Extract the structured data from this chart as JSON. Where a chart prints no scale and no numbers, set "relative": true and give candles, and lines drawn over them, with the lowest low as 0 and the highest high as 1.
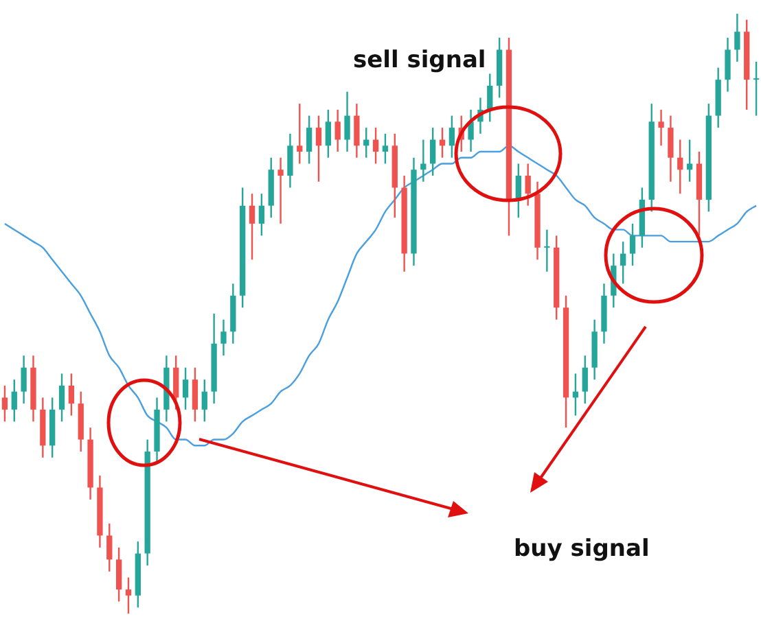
{
  "chart_data": {
    "type": "candlestick",
    "relative": true,
    "categories": [
      null,
      null,
      null,
      null,
      null,
      null,
      null,
      null,
      null,
      null,
      null,
      null,
      null,
      null,
      null,
      null,
      null,
      null,
      null,
      null,
      null,
      null,
      null,
      null,
      null,
      null,
      null,
      null,
      null,
      null,
      null,
      null,
      null,
      null,
      null,
      null,
      null,
      null,
      null,
      null,
      null,
      null,
      null,
      null,
      null,
      null,
      null,
      null,
      null,
      null,
      null,
      null,
      null,
      null,
      null,
      null,
      null,
      null,
      null,
      null,
      null,
      null,
      null,
      null,
      null,
      null,
      null,
      null,
      null,
      null,
      null,
      null,
      null,
      null,
      null,
      null,
      null,
      null,
      null,
      null
    ],
    "ohlc": [
      [
        0.36,
        0.38,
        0.32,
        0.34
      ],
      [
        0.34,
        0.39,
        0.32,
        0.37
      ],
      [
        0.37,
        0.43,
        0.35,
        0.41
      ],
      [
        0.41,
        0.43,
        0.32,
        0.34
      ],
      [
        0.34,
        0.36,
        0.26,
        0.28
      ],
      [
        0.28,
        0.36,
        0.26,
        0.34
      ],
      [
        0.34,
        0.4,
        0.32,
        0.38
      ],
      [
        0.38,
        0.4,
        0.33,
        0.35
      ],
      [
        0.35,
        0.37,
        0.27,
        0.29
      ],
      [
        0.29,
        0.31,
        0.19,
        0.21
      ],
      [
        0.21,
        0.23,
        0.11,
        0.13
      ],
      [
        0.13,
        0.15,
        0.07,
        0.09
      ],
      [
        0.09,
        0.11,
        0.02,
        0.04
      ],
      [
        0.04,
        0.06,
        0,
        0.03
      ],
      [
        0.03,
        0.12,
        0.01,
        0.1
      ],
      [
        0.1,
        0.29,
        0.08,
        0.27
      ],
      [
        0.27,
        0.36,
        0.25,
        0.34
      ],
      [
        0.34,
        0.43,
        0.32,
        0.41
      ],
      [
        0.41,
        0.43,
        0.34,
        0.36
      ],
      [
        0.36,
        0.41,
        0.34,
        0.39
      ],
      [
        0.39,
        0.41,
        0.32,
        0.34
      ],
      [
        0.34,
        0.39,
        0.32,
        0.37
      ],
      [
        0.37,
        0.5,
        0.35,
        0.45
      ],
      [
        0.45,
        0.49,
        0.43,
        0.47
      ],
      [
        0.47,
        0.55,
        0.45,
        0.53
      ],
      [
        0.53,
        0.71,
        0.51,
        0.68
      ],
      [
        0.68,
        0.7,
        0.59,
        0.65
      ],
      [
        0.65,
        0.7,
        0.63,
        0.68
      ],
      [
        0.68,
        0.76,
        0.66,
        0.74
      ],
      [
        0.74,
        0.76,
        0.65,
        0.73
      ],
      [
        0.73,
        0.8,
        0.71,
        0.78
      ],
      [
        0.78,
        0.85,
        0.75,
        0.77
      ],
      [
        0.77,
        0.83,
        0.75,
        0.81
      ],
      [
        0.81,
        0.83,
        0.72,
        0.78
      ],
      [
        0.78,
        0.84,
        0.76,
        0.82
      ],
      [
        0.82,
        0.84,
        0.77,
        0.79
      ],
      [
        0.79,
        0.87,
        0.77,
        0.83
      ],
      [
        0.83,
        0.85,
        0.76,
        0.78
      ],
      [
        0.78,
        0.81,
        0.76,
        0.79
      ],
      [
        0.79,
        0.81,
        0.75,
        0.77
      ],
      [
        0.77,
        0.8,
        0.75,
        0.78
      ],
      [
        0.78,
        0.8,
        0.66,
        0.71
      ],
      [
        0.71,
        0.73,
        0.57,
        0.6
      ],
      [
        0.6,
        0.76,
        0.58,
        0.74
      ],
      [
        0.74,
        0.79,
        0.72,
        0.75
      ],
      [
        0.75,
        0.81,
        0.73,
        0.79
      ],
      [
        0.79,
        0.81,
        0.76,
        0.78
      ],
      [
        0.78,
        0.83,
        0.76,
        0.81
      ],
      [
        0.81,
        0.83,
        0.77,
        0.79
      ],
      [
        0.79,
        0.84,
        0.77,
        0.82
      ],
      [
        0.82,
        0.86,
        0.8,
        0.84
      ],
      [
        0.84,
        0.9,
        0.82,
        0.88
      ],
      [
        0.88,
        0.96,
        0.86,
        0.94
      ],
      [
        0.94,
        0.96,
        0.63,
        0.69
      ],
      [
        0.69,
        0.75,
        0.66,
        0.73
      ],
      [
        0.73,
        0.75,
        0.68,
        0.7
      ],
      [
        0.7,
        0.72,
        0.59,
        0.61
      ],
      [
        0.61,
        0.64,
        0.57,
        0.61
      ],
      [
        0.61,
        0.63,
        0.49,
        0.51
      ],
      [
        0.51,
        0.53,
        0.31,
        0.36
      ],
      [
        0.36,
        0.4,
        0.33,
        0.37
      ],
      [
        0.37,
        0.43,
        0.35,
        0.41
      ],
      [
        0.41,
        0.49,
        0.39,
        0.47
      ],
      [
        0.47,
        0.55,
        0.45,
        0.53
      ],
      [
        0.53,
        0.6,
        0.51,
        0.58
      ],
      [
        0.58,
        0.62,
        0.55,
        0.6
      ],
      [
        0.6,
        0.65,
        0.58,
        0.63
      ],
      [
        0.63,
        0.71,
        0.61,
        0.69
      ],
      [
        0.69,
        0.85,
        0.67,
        0.82
      ],
      [
        0.82,
        0.84,
        0.78,
        0.81
      ],
      [
        0.81,
        0.83,
        0.72,
        0.76
      ],
      [
        0.76,
        0.79,
        0.7,
        0.74
      ],
      [
        0.74,
        0.79,
        0.72,
        0.75
      ],
      [
        0.75,
        0.77,
        0.63,
        0.69
      ],
      [
        0.69,
        0.85,
        0.67,
        0.83
      ],
      [
        0.83,
        0.91,
        0.81,
        0.89
      ],
      [
        0.89,
        0.96,
        0.87,
        0.94
      ],
      [
        0.94,
        1,
        0.92,
        0.97
      ],
      [
        0.97,
        0.99,
        0.84,
        0.89
      ],
      [
        0.89,
        0.92,
        0.83,
        0.89
      ]
    ],
    "series": [
      {
        "type": "line",
        "color": "#4a9fe0",
        "values": [
          0.65,
          0.64,
          0.63,
          0.62,
          0.61,
          0.59,
          0.57,
          0.55,
          0.53,
          0.5,
          0.47,
          0.43,
          0.41,
          0.38,
          0.36,
          0.33,
          0.32,
          0.31,
          0.29,
          0.29,
          0.28,
          0.28,
          0.29,
          0.29,
          0.3,
          0.32,
          0.33,
          0.34,
          0.35,
          0.37,
          0.38,
          0.4,
          0.43,
          0.45,
          0.49,
          0.52,
          0.56,
          0.6,
          0.62,
          0.64,
          0.67,
          0.69,
          0.71,
          0.72,
          0.73,
          0.74,
          0.75,
          0.75,
          0.76,
          0.76,
          0.77,
          0.77,
          0.77,
          0.78,
          0.77,
          0.76,
          0.75,
          0.74,
          0.73,
          0.71,
          0.69,
          0.68,
          0.66,
          0.65,
          0.64,
          0.64,
          0.63,
          0.63,
          0.63,
          0.63,
          0.62,
          0.62,
          0.62,
          0.62,
          0.62,
          0.63,
          0.64,
          0.65,
          0.67,
          0.68
        ]
      }
    ],
    "annotations": [
      "sell signal",
      "buy signal"
    ]
  }
}
